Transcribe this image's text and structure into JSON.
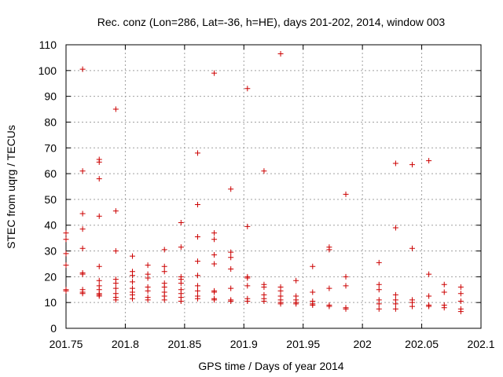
{
  "chart_data": {
    "type": "scatter",
    "title": "Rec. conz (Lon=286, Lat=-36, h=HE), days 201-202, 2014, window 003",
    "xlabel": "GPS time / Days of year 2014",
    "ylabel": "STEC from uqrg / TECUs",
    "xlim": [
      201.75,
      202.1
    ],
    "ylim": [
      0,
      110
    ],
    "xticks": [
      201.75,
      201.8,
      201.85,
      201.9,
      201.95,
      202,
      202.05,
      202.1
    ],
    "xtick_labels": [
      "201.75",
      "201.8",
      "201.85",
      "201.9",
      "201.95",
      "202",
      "202.05",
      "202.1"
    ],
    "yticks": [
      0,
      10,
      20,
      30,
      40,
      50,
      60,
      70,
      80,
      90,
      100,
      110
    ],
    "ytick_labels": [
      "0",
      "10",
      "20",
      "30",
      "40",
      "50",
      "60",
      "70",
      "80",
      "90",
      "100",
      "110"
    ],
    "grid": true,
    "marker": "+",
    "color": "#cc0000",
    "series": [
      {
        "points": [
          [
            201.75,
            37
          ],
          [
            201.75,
            34.5
          ],
          [
            201.75,
            29
          ],
          [
            201.75,
            24.5
          ],
          [
            201.75,
            15
          ],
          [
            201.75,
            14.5
          ],
          [
            201.764,
            100.5
          ],
          [
            201.764,
            61
          ],
          [
            201.764,
            44.5
          ],
          [
            201.764,
            38.5
          ],
          [
            201.764,
            31
          ],
          [
            201.764,
            21.5
          ],
          [
            201.764,
            21
          ],
          [
            201.764,
            15
          ],
          [
            201.764,
            14
          ],
          [
            201.764,
            13.5
          ],
          [
            201.778,
            65.5
          ],
          [
            201.778,
            64.5
          ],
          [
            201.778,
            58
          ],
          [
            201.778,
            43.5
          ],
          [
            201.778,
            24
          ],
          [
            201.778,
            18.5
          ],
          [
            201.778,
            16.5
          ],
          [
            201.778,
            15
          ],
          [
            201.778,
            13.5
          ],
          [
            201.778,
            13
          ],
          [
            201.778,
            12.5
          ],
          [
            201.792,
            85
          ],
          [
            201.792,
            45.5
          ],
          [
            201.792,
            30
          ],
          [
            201.792,
            19
          ],
          [
            201.792,
            17.5
          ],
          [
            201.792,
            15.5
          ],
          [
            201.792,
            13.5
          ],
          [
            201.792,
            12
          ],
          [
            201.792,
            11
          ],
          [
            201.806,
            28
          ],
          [
            201.806,
            22
          ],
          [
            201.806,
            20.5
          ],
          [
            201.806,
            18
          ],
          [
            201.806,
            15.5
          ],
          [
            201.806,
            14
          ],
          [
            201.806,
            13
          ],
          [
            201.806,
            11.5
          ],
          [
            201.819,
            24.5
          ],
          [
            201.819,
            21
          ],
          [
            201.819,
            19.5
          ],
          [
            201.819,
            16
          ],
          [
            201.819,
            14.5
          ],
          [
            201.819,
            12
          ],
          [
            201.819,
            11
          ],
          [
            201.833,
            30.5
          ],
          [
            201.833,
            24
          ],
          [
            201.833,
            22
          ],
          [
            201.833,
            17.5
          ],
          [
            201.833,
            16
          ],
          [
            201.833,
            14
          ],
          [
            201.833,
            12.5
          ],
          [
            201.833,
            11
          ],
          [
            201.847,
            41
          ],
          [
            201.847,
            31.5
          ],
          [
            201.847,
            20
          ],
          [
            201.847,
            19
          ],
          [
            201.847,
            17.5
          ],
          [
            201.847,
            15
          ],
          [
            201.847,
            13.5
          ],
          [
            201.847,
            12
          ],
          [
            201.847,
            10.5
          ],
          [
            201.861,
            68
          ],
          [
            201.861,
            48
          ],
          [
            201.861,
            35.5
          ],
          [
            201.861,
            26
          ],
          [
            201.861,
            20.5
          ],
          [
            201.861,
            16.5
          ],
          [
            201.861,
            14.5
          ],
          [
            201.861,
            12.5
          ],
          [
            201.861,
            11.5
          ],
          [
            201.875,
            99
          ],
          [
            201.875,
            37
          ],
          [
            201.875,
            34.5
          ],
          [
            201.875,
            28.5
          ],
          [
            201.875,
            25
          ],
          [
            201.875,
            14.5
          ],
          [
            201.875,
            14
          ],
          [
            201.875,
            11.5
          ],
          [
            201.875,
            11
          ],
          [
            201.889,
            54
          ],
          [
            201.889,
            29.5
          ],
          [
            201.889,
            27.5
          ],
          [
            201.889,
            23
          ],
          [
            201.889,
            15.5
          ],
          [
            201.889,
            11
          ],
          [
            201.889,
            10.5
          ],
          [
            201.903,
            93
          ],
          [
            201.903,
            39.5
          ],
          [
            201.903,
            20
          ],
          [
            201.903,
            19.5
          ],
          [
            201.903,
            16.5
          ],
          [
            201.903,
            11.5
          ],
          [
            201.903,
            10.5
          ],
          [
            201.917,
            61
          ],
          [
            201.917,
            17
          ],
          [
            201.917,
            16
          ],
          [
            201.917,
            13
          ],
          [
            201.917,
            11.5
          ],
          [
            201.917,
            10.5
          ],
          [
            201.931,
            106.5
          ],
          [
            201.931,
            16
          ],
          [
            201.931,
            14.5
          ],
          [
            201.931,
            12.5
          ],
          [
            201.931,
            11
          ],
          [
            201.931,
            10
          ],
          [
            201.931,
            9.5
          ],
          [
            201.944,
            18.5
          ],
          [
            201.944,
            12.5
          ],
          [
            201.944,
            11
          ],
          [
            201.944,
            10
          ],
          [
            201.944,
            9.5
          ],
          [
            201.958,
            24
          ],
          [
            201.958,
            14
          ],
          [
            201.958,
            10.5
          ],
          [
            201.958,
            9.5
          ],
          [
            201.958,
            9
          ],
          [
            201.972,
            31.5
          ],
          [
            201.972,
            30.5
          ],
          [
            201.972,
            15.5
          ],
          [
            201.972,
            9
          ],
          [
            201.972,
            8.5
          ],
          [
            201.986,
            52
          ],
          [
            201.986,
            20
          ],
          [
            201.986,
            16.5
          ],
          [
            201.986,
            8
          ],
          [
            201.986,
            7.5
          ],
          [
            202.014,
            25.5
          ],
          [
            202.014,
            17
          ],
          [
            202.014,
            15
          ],
          [
            202.014,
            11
          ],
          [
            202.014,
            9.5
          ],
          [
            202.014,
            7.5
          ],
          [
            202.028,
            64
          ],
          [
            202.028,
            39
          ],
          [
            202.028,
            13
          ],
          [
            202.028,
            11
          ],
          [
            202.028,
            9.5
          ],
          [
            202.028,
            7.5
          ],
          [
            202.042,
            63.5
          ],
          [
            202.042,
            31
          ],
          [
            202.042,
            11
          ],
          [
            202.042,
            10
          ],
          [
            202.042,
            8.5
          ],
          [
            202.056,
            65
          ],
          [
            202.056,
            21
          ],
          [
            202.056,
            12.5
          ],
          [
            202.056,
            9
          ],
          [
            202.056,
            8.5
          ],
          [
            202.069,
            17
          ],
          [
            202.069,
            14
          ],
          [
            202.069,
            9
          ],
          [
            202.069,
            8
          ],
          [
            202.083,
            16
          ],
          [
            202.083,
            13.5
          ],
          [
            202.083,
            10.5
          ],
          [
            202.083,
            7.5
          ],
          [
            202.083,
            6.5
          ]
        ]
      }
    ]
  }
}
